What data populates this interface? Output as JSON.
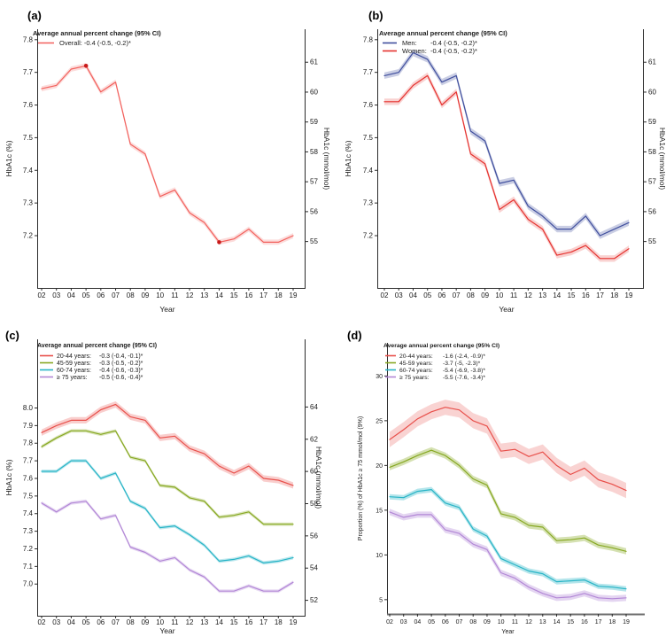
{
  "figure": {
    "panel_labels": {
      "a": "(a)",
      "b": "(b)",
      "c": "(c)",
      "d": "(d)"
    },
    "background": "#ffffff",
    "axis_color": "#2b2b2b",
    "marker_color": "#c81a1a"
  },
  "chart_data": [
    {
      "id": "a",
      "type": "line",
      "legend": {
        "title": "Average annual percent change (95% CI)",
        "items": [
          {
            "label": "Overall:",
            "value": "-0.4 (-0.5, -0.2)*"
          }
        ]
      },
      "xlabel": "Year",
      "ylabel_left": "HbA1c (%)",
      "ylabel_right": "HbA1c (mmol/mol)",
      "x": [
        "02",
        "03",
        "04",
        "05",
        "06",
        "07",
        "08",
        "09",
        "10",
        "11",
        "12",
        "13",
        "14",
        "15",
        "16",
        "17",
        "18",
        "19"
      ],
      "ylim": [
        7.04,
        7.832
      ],
      "yticks_left": {
        "values": [
          7.2,
          7.3,
          7.4,
          7.5,
          7.6,
          7.7,
          7.8
        ],
        "labels": [
          "7.2",
          "7.3",
          "7.4",
          "7.5",
          "7.6",
          "7.7",
          "7.8"
        ]
      },
      "yticks_right": {
        "values_mmol": [
          55,
          56,
          57,
          58,
          59,
          60,
          61
        ],
        "labels": [
          "55",
          "56",
          "57",
          "58",
          "59",
          "60",
          "61"
        ]
      },
      "series": [
        {
          "name": "Overall",
          "color": "#f2605c",
          "band": "rgba(242,96,92,0.22)",
          "ci": 0.008,
          "values": [
            7.65,
            7.66,
            7.71,
            7.72,
            7.64,
            7.67,
            7.48,
            7.45,
            7.32,
            7.34,
            7.27,
            7.24,
            7.18,
            7.19,
            7.22,
            7.18,
            7.18,
            7.2
          ],
          "markers": [
            3,
            12
          ]
        }
      ]
    },
    {
      "id": "b",
      "type": "line",
      "legend": {
        "title": "Average annual percent change (95% CI)",
        "items": [
          {
            "label": "Men:",
            "value": "-0.4 (-0.5, -0.2)*"
          },
          {
            "label": "Women:",
            "value": "-0.4 (-0.5, -0.2)*"
          }
        ]
      },
      "xlabel": "Year",
      "ylabel_left": "HbA1c (%)",
      "ylabel_right": "HbA1c (mmol/mol)",
      "x": [
        "02",
        "03",
        "04",
        "05",
        "06",
        "07",
        "08",
        "09",
        "10",
        "11",
        "12",
        "13",
        "14",
        "15",
        "16",
        "17",
        "18",
        "19"
      ],
      "ylim": [
        7.04,
        7.832
      ],
      "yticks_left": {
        "values": [
          7.2,
          7.3,
          7.4,
          7.5,
          7.6,
          7.7,
          7.8
        ],
        "labels": [
          "7.2",
          "7.3",
          "7.4",
          "7.5",
          "7.6",
          "7.7",
          "7.8"
        ]
      },
      "yticks_right": {
        "values_mmol": [
          55,
          56,
          57,
          58,
          59,
          60,
          61
        ],
        "labels": [
          "55",
          "56",
          "57",
          "58",
          "59",
          "60",
          "61"
        ]
      },
      "series": [
        {
          "name": "Men",
          "color": "#3f4e9d",
          "band": "rgba(63,78,157,0.28)",
          "ci": 0.01,
          "values": [
            7.69,
            7.7,
            7.76,
            7.74,
            7.67,
            7.69,
            7.52,
            7.49,
            7.36,
            7.37,
            7.29,
            7.26,
            7.22,
            7.22,
            7.26,
            7.2,
            7.22,
            7.24
          ]
        },
        {
          "name": "Women",
          "color": "#e5312e",
          "band": "rgba(229,49,46,0.22)",
          "ci": 0.01,
          "values": [
            7.61,
            7.61,
            7.66,
            7.69,
            7.6,
            7.64,
            7.45,
            7.42,
            7.28,
            7.31,
            7.25,
            7.22,
            7.14,
            7.15,
            7.17,
            7.13,
            7.13,
            7.16
          ]
        }
      ]
    },
    {
      "id": "c",
      "type": "line",
      "legend": {
        "title": "Average annual percent change (95% CI)",
        "items": [
          {
            "label": "20-44 years:",
            "value": "-0.3 (-0.4, -0.1)*"
          },
          {
            "label": "45-59 years:",
            "value": "-0.3 (-0.5, -0.2)*"
          },
          {
            "label": "60-74 years:",
            "value": "-0.4 (-0.6, -0.3)*"
          },
          {
            "label": "≥  75 years:",
            "value": "-0.5 (-0.6, -0.4)*"
          }
        ]
      },
      "xlabel": "Year",
      "ylabel_left": "HbA1c (%)",
      "ylabel_right": "HbA1c (mmol/mol)",
      "x": [
        "02",
        "03",
        "04",
        "05",
        "06",
        "07",
        "08",
        "09",
        "10",
        "11",
        "12",
        "13",
        "14",
        "15",
        "16",
        "17",
        "18",
        "19"
      ],
      "ylim": [
        6.82,
        8.39
      ],
      "yticks_left": {
        "values": [
          7.0,
          7.1,
          7.2,
          7.3,
          7.4,
          7.5,
          7.6,
          7.7,
          7.8,
          7.9,
          8.0
        ],
        "labels": [
          "7.0",
          "7.1",
          "7.2",
          "7.3",
          "7.4",
          "7.5",
          "7.6",
          "7.7",
          "7.8",
          "7.9",
          "8.0"
        ]
      },
      "yticks_right": {
        "values_mmol": [
          52,
          54,
          56,
          58,
          60,
          62,
          64
        ],
        "labels": [
          "52",
          "54",
          "56",
          "58",
          "60",
          "62",
          "64"
        ]
      },
      "series": [
        {
          "name": "20-44 years",
          "color": "#e8504b",
          "band": "rgba(232,80,75,0.28)",
          "ci": 0.018,
          "values": [
            7.86,
            7.9,
            7.93,
            7.93,
            7.99,
            8.02,
            7.95,
            7.93,
            7.83,
            7.84,
            7.77,
            7.74,
            7.67,
            7.63,
            7.67,
            7.6,
            7.59,
            7.56
          ]
        },
        {
          "name": "45-59 years",
          "color": "#87a822",
          "band": "rgba(135,168,34,0.30)",
          "ci": 0.01,
          "values": [
            7.78,
            7.83,
            7.87,
            7.87,
            7.85,
            7.87,
            7.72,
            7.7,
            7.56,
            7.55,
            7.49,
            7.47,
            7.38,
            7.39,
            7.41,
            7.34,
            7.34,
            7.34
          ]
        },
        {
          "name": "60-74 years",
          "color": "#27b4c6",
          "band": "rgba(39,180,198,0.30)",
          "ci": 0.01,
          "values": [
            7.64,
            7.64,
            7.7,
            7.7,
            7.6,
            7.63,
            7.47,
            7.43,
            7.32,
            7.33,
            7.28,
            7.22,
            7.13,
            7.14,
            7.16,
            7.12,
            7.13,
            7.15
          ]
        },
        {
          "name": "≥ 75 years",
          "color": "#b287d6",
          "band": "rgba(178,135,214,0.30)",
          "ci": 0.01,
          "values": [
            7.46,
            7.41,
            7.46,
            7.47,
            7.37,
            7.39,
            7.21,
            7.18,
            7.13,
            7.15,
            7.08,
            7.04,
            6.96,
            6.96,
            6.99,
            6.96,
            6.96,
            7.01
          ]
        }
      ]
    },
    {
      "id": "d",
      "type": "line",
      "legend": {
        "title": "Average annual percent change (95% CI)",
        "items": [
          {
            "label": "20-44 years:",
            "value": "-1.6 (-2.4, -0.9)*"
          },
          {
            "label": "45-59 years:",
            "value": "-3.7 (-5, -2.3)*"
          },
          {
            "label": "60-74 years:",
            "value": "-5.4 (-6.9, -3.8)*"
          },
          {
            "label": "≥  75 years:",
            "value": "-5.5 (-7.6, -3.4)*"
          }
        ]
      },
      "xlabel": "Year",
      "ylabel_left": "Proportion (%) of HbA1c ≥ 75 mmol/mol (9%)",
      "ylabel_right": null,
      "x": [
        "02",
        "03",
        "04",
        "05",
        "06",
        "07",
        "08",
        "09",
        "10",
        "11",
        "12",
        "13",
        "14",
        "15",
        "16",
        "17",
        "18",
        "19"
      ],
      "ylim": [
        3.4,
        33.7
      ],
      "yticks_left": {
        "values": [
          5,
          10,
          15,
          20,
          25,
          30
        ],
        "labels": [
          "5",
          "10",
          "15",
          "20",
          "25",
          "30"
        ]
      },
      "yticks_right": null,
      "series": [
        {
          "name": "20-44 years",
          "color": "#e8504b",
          "band": "rgba(232,80,75,0.25)",
          "ci": 0.85,
          "values": [
            22.9,
            24.0,
            25.2,
            26.0,
            26.5,
            26.2,
            25.0,
            24.4,
            21.6,
            21.8,
            21.0,
            21.5,
            20.0,
            19.0,
            19.7,
            18.4,
            17.9,
            17.2
          ]
        },
        {
          "name": "45-59 years",
          "color": "#87a822",
          "band": "rgba(135,168,34,0.35)",
          "ci": 0.35,
          "values": [
            19.8,
            20.4,
            21.1,
            21.7,
            21.1,
            20.0,
            18.5,
            17.8,
            14.6,
            14.2,
            13.3,
            13.1,
            11.6,
            11.7,
            11.9,
            11.1,
            10.8,
            10.4
          ]
        },
        {
          "name": "60-74 years",
          "color": "#27b4c6",
          "band": "rgba(39,180,198,0.35)",
          "ci": 0.3,
          "values": [
            16.5,
            16.4,
            17.1,
            17.3,
            15.8,
            15.3,
            12.9,
            12.1,
            9.6,
            8.9,
            8.2,
            7.9,
            7.0,
            7.1,
            7.2,
            6.5,
            6.4,
            6.2
          ]
        },
        {
          "name": "≥ 75 years",
          "color": "#b287d6",
          "band": "rgba(178,135,214,0.35)",
          "ci": 0.35,
          "values": [
            14.8,
            14.2,
            14.5,
            14.5,
            12.8,
            12.4,
            11.2,
            10.6,
            8.0,
            7.4,
            6.4,
            5.7,
            5.2,
            5.3,
            5.7,
            5.2,
            5.1,
            5.2
          ]
        }
      ]
    }
  ]
}
